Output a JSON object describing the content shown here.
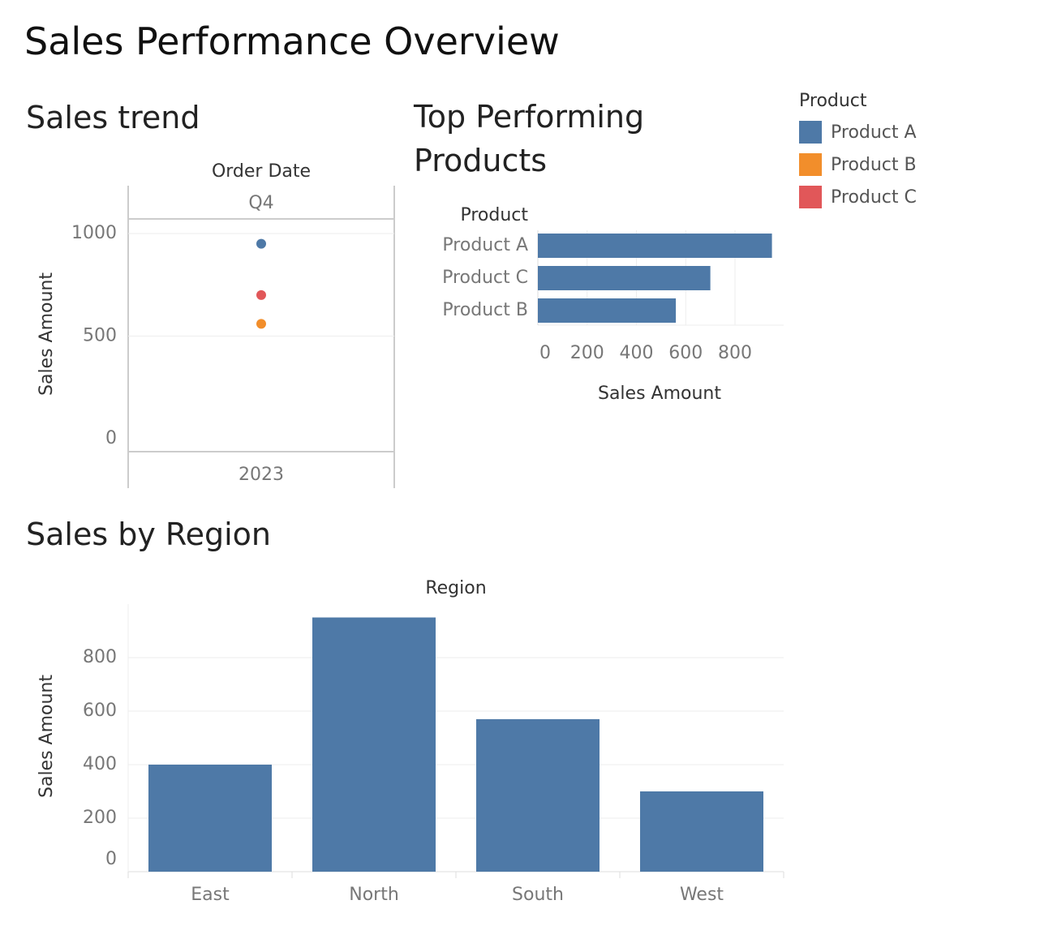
{
  "dashboard": {
    "title": "Sales Performance Overview"
  },
  "legend": {
    "title": "Product",
    "items": [
      {
        "label": "Product A",
        "color": "#4e79a7"
      },
      {
        "label": "Product B",
        "color": "#f28e2b"
      },
      {
        "label": "Product C",
        "color": "#e15759"
      }
    ]
  },
  "chart_data": [
    {
      "type": "scatter",
      "title": "Sales trend",
      "column_header_title": "Order Date",
      "column_header": "Q4",
      "row_footer": "2023",
      "ylabel": "Sales Amount",
      "ylim": [
        0,
        1100
      ],
      "yticks": [
        0,
        500,
        1000
      ],
      "points": [
        {
          "series": "Product A",
          "y": 950,
          "color": "#4e79a7"
        },
        {
          "series": "Product C",
          "y": 700,
          "color": "#e15759"
        },
        {
          "series": "Product B",
          "y": 560,
          "color": "#f28e2b"
        }
      ],
      "grid": true
    },
    {
      "type": "bar",
      "orientation": "horizontal",
      "title": "Top Performing Products",
      "row_header": "Product",
      "categories": [
        "Product A",
        "Product C",
        "Product B"
      ],
      "values": [
        950,
        700,
        560
      ],
      "xlabel": "Sales Amount",
      "xlim": [
        0,
        1000
      ],
      "xticks": [
        0,
        200,
        400,
        600,
        800
      ],
      "color": "#4e79a7",
      "grid": true
    },
    {
      "type": "bar",
      "orientation": "vertical",
      "title": "Sales by Region",
      "column_header_title": "Region",
      "categories": [
        "East",
        "North",
        "South",
        "West"
      ],
      "values": [
        400,
        950,
        570,
        300
      ],
      "ylabel": "Sales Amount",
      "ylim": [
        0,
        950
      ],
      "yticks": [
        0,
        200,
        400,
        600,
        800
      ],
      "color": "#4e79a7",
      "grid": true
    }
  ]
}
